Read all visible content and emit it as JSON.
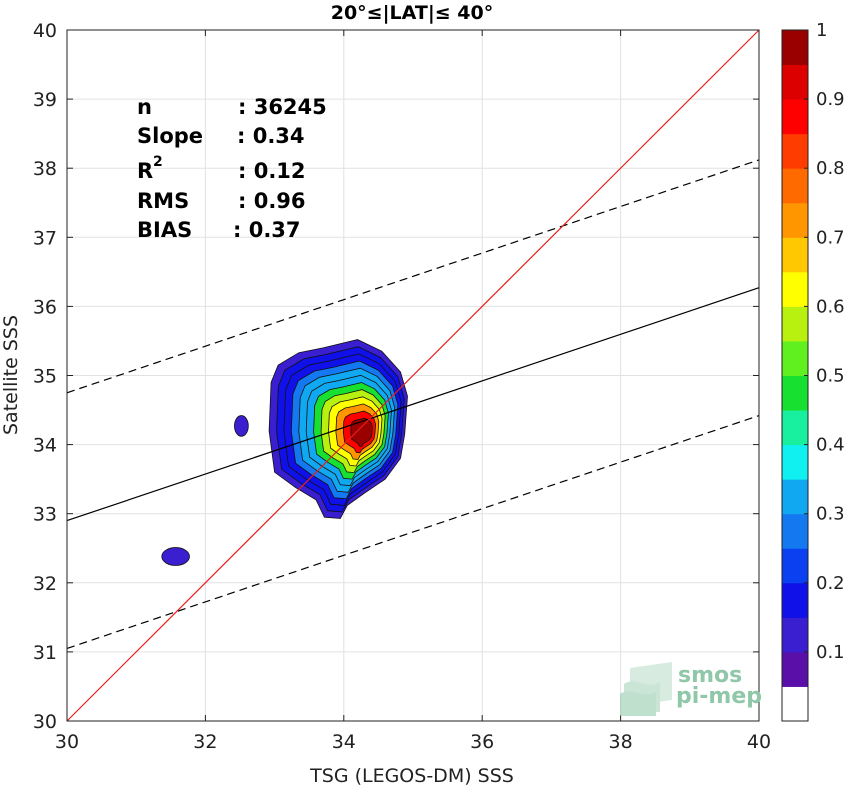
{
  "chart_data": {
    "type": "contour",
    "title": "20°≤|LAT|≤ 40°",
    "xlabel": "TSG (LEGOS-DM) SSS",
    "ylabel": "Satellite SSS",
    "xlim": [
      30,
      40
    ],
    "ylim": [
      30,
      40
    ],
    "xticks": [
      30,
      32,
      34,
      36,
      38,
      40
    ],
    "yticks": [
      30,
      31,
      32,
      33,
      34,
      35,
      36,
      37,
      38,
      39,
      40
    ],
    "grid": true,
    "stats": {
      "n_label": "n",
      "n_value": ": 36245",
      "slope_label": "Slope",
      "slope_value": ": 0.34",
      "r2_label": "R",
      "r2_sup": "2",
      "r2_value": ": 0.12",
      "rms_label": "RMS",
      "rms_value": ": 0.96",
      "bias_label": "BIAS",
      "bias_value": ": 0.37"
    },
    "lines": {
      "identity": {
        "x": [
          30,
          40
        ],
        "y": [
          30,
          40
        ],
        "color": "#e8201c"
      },
      "fit": {
        "x": [
          30,
          40
        ],
        "y": [
          32.9,
          36.27
        ],
        "color": "#000000"
      },
      "upper_bound": {
        "x": [
          30,
          40
        ],
        "y": [
          34.75,
          38.12
        ],
        "color": "#000000",
        "dash": true
      },
      "lower_bound": {
        "x": [
          30,
          40
        ],
        "y": [
          31.05,
          34.42
        ],
        "color": "#000000",
        "dash": true
      }
    },
    "density": {
      "center": [
        34.32,
        34.17
      ],
      "levels": [
        0.05,
        0.1,
        0.15,
        0.2,
        0.25,
        0.3,
        0.4,
        0.5,
        0.6,
        0.7,
        0.8,
        0.9
      ],
      "main_outline": [
        [
          33.7,
          35.4
        ],
        [
          34.2,
          35.52
        ],
        [
          34.55,
          35.35
        ],
        [
          34.82,
          35.05
        ],
        [
          34.92,
          34.7
        ],
        [
          34.88,
          34.15
        ],
        [
          34.82,
          33.8
        ],
        [
          34.6,
          33.5
        ],
        [
          34.3,
          33.3
        ],
        [
          34.05,
          33.12
        ],
        [
          33.95,
          32.93
        ],
        [
          33.72,
          32.95
        ],
        [
          33.6,
          33.2
        ],
        [
          33.3,
          33.38
        ],
        [
          33.0,
          33.6
        ],
        [
          32.92,
          34.2
        ],
        [
          32.95,
          34.9
        ],
        [
          33.05,
          35.15
        ],
        [
          33.35,
          35.33
        ]
      ],
      "islands": [
        {
          "x": 32.52,
          "y": 34.27,
          "rx": 0.1,
          "ry": 0.15
        },
        {
          "x": 31.57,
          "y": 32.38,
          "rx": 0.2,
          "ry": 0.13
        }
      ]
    },
    "colorbar": {
      "min": 0,
      "max": 1,
      "ticks": [
        0.1,
        0.2,
        0.3,
        0.4,
        0.5,
        0.6,
        0.7,
        0.8,
        0.9,
        1
      ],
      "tick_labels": [
        "0.1",
        "0.2",
        "0.3",
        "0.4",
        "0.5",
        "0.6",
        "0.7",
        "0.8",
        "0.9",
        "1"
      ],
      "colors": [
        "#ffffff",
        "#5a0fa8",
        "#3a1fd0",
        "#1010e8",
        "#0a40f0",
        "#1478f0",
        "#10a8f0",
        "#10f0f0",
        "#18f0a0",
        "#18e030",
        "#60f020",
        "#b8f010",
        "#ffff00",
        "#ffc800",
        "#ff9600",
        "#ff6a00",
        "#ff3c00",
        "#ff0000",
        "#dd0000",
        "#9a0000"
      ]
    }
  },
  "watermark": {
    "line1": "smos",
    "line2": "pi-mep"
  }
}
